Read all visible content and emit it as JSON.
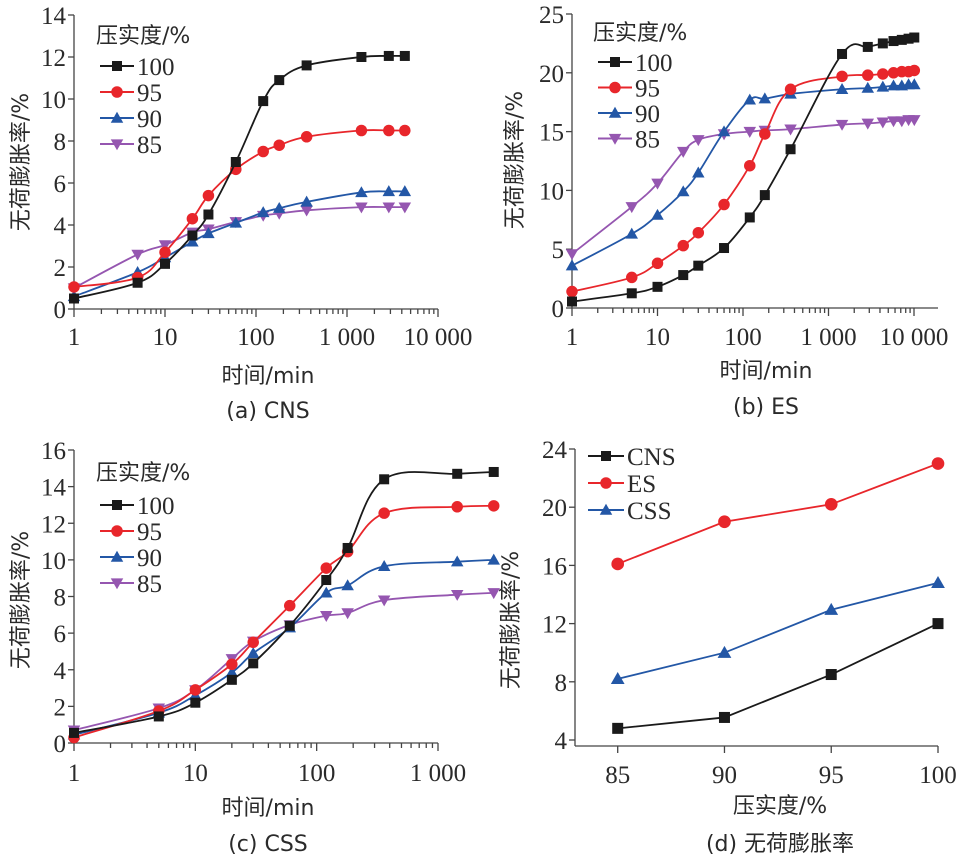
{
  "chart_data": [
    {
      "id": "a",
      "type": "line",
      "caption": "(a) CNS",
      "xlabel": "时间/min",
      "ylabel": "无荷膨胀率/%",
      "xscale": "log",
      "xlim": [
        1,
        10000
      ],
      "ylim": [
        0,
        14
      ],
      "xticks": [
        1,
        10,
        100,
        1000,
        10000
      ],
      "xtick_labels": [
        "1",
        "10",
        "100",
        "1 000",
        "10 000"
      ],
      "yticks": [
        0,
        2,
        4,
        6,
        8,
        10,
        12,
        14
      ],
      "ytick_labels": [
        "0",
        "2",
        "4",
        "6",
        "8",
        "10",
        "12",
        "14"
      ],
      "legend_title": "压实度/%",
      "legend_position": "top-left",
      "x": [
        1,
        5,
        10,
        20,
        30,
        60,
        120,
        180,
        360,
        1440,
        2880,
        4320
      ],
      "series": [
        {
          "name": "100",
          "marker": "square",
          "color": "#1a1a1a",
          "values": [
            0.5,
            1.25,
            2.15,
            3.5,
            4.5,
            7.0,
            9.9,
            10.9,
            11.6,
            12.0,
            12.05,
            12.05
          ]
        },
        {
          "name": "95",
          "marker": "circle",
          "color": "#e8262b",
          "values": [
            1.05,
            1.5,
            2.7,
            4.3,
            5.4,
            6.65,
            7.5,
            7.8,
            8.2,
            8.5,
            8.5,
            8.5
          ]
        },
        {
          "name": "90",
          "marker": "triangle-up",
          "color": "#2357a6",
          "values": [
            0.6,
            1.75,
            2.45,
            3.2,
            3.6,
            4.1,
            4.6,
            4.8,
            5.1,
            5.55,
            5.6,
            5.6
          ]
        },
        {
          "name": "85",
          "marker": "triangle-down",
          "color": "#9556b0",
          "values": [
            1.0,
            2.6,
            3.05,
            3.65,
            3.8,
            4.15,
            4.45,
            4.55,
            4.7,
            4.85,
            4.85,
            4.85
          ]
        }
      ]
    },
    {
      "id": "b",
      "type": "line",
      "caption": "(b) ES",
      "xlabel": "时间/min",
      "ylabel": "无荷膨胀率/%",
      "xscale": "log",
      "xlim": [
        1,
        10000
      ],
      "ylim": [
        0,
        25
      ],
      "xticks": [
        1,
        10,
        100,
        1000,
        10000
      ],
      "xtick_labels": [
        "1",
        "10",
        "100",
        "1 000",
        "10 000"
      ],
      "yticks": [
        0,
        5,
        10,
        15,
        20,
        25
      ],
      "ytick_labels": [
        "0",
        "5",
        "10",
        "15",
        "20",
        "25"
      ],
      "legend_title": "压实度/%",
      "legend_position": "top-left",
      "x": [
        1,
        5,
        10,
        20,
        30,
        60,
        120,
        180,
        360,
        1440,
        2880,
        4320,
        5760,
        7200,
        8640,
        10080
      ],
      "series": [
        {
          "name": "100",
          "marker": "square",
          "color": "#1a1a1a",
          "values": [
            0.55,
            1.25,
            1.8,
            2.8,
            3.6,
            5.1,
            7.7,
            9.6,
            13.5,
            21.6,
            22.2,
            22.5,
            22.7,
            22.8,
            22.9,
            23.0
          ]
        },
        {
          "name": "95",
          "marker": "circle",
          "color": "#e8262b",
          "values": [
            1.4,
            2.6,
            3.8,
            5.3,
            6.4,
            8.8,
            12.1,
            14.8,
            18.6,
            19.7,
            19.8,
            19.9,
            20.0,
            20.1,
            20.1,
            20.2
          ]
        },
        {
          "name": "90",
          "marker": "triangle-up",
          "color": "#2357a6",
          "values": [
            3.6,
            6.3,
            7.9,
            9.9,
            11.5,
            15.0,
            17.7,
            17.8,
            18.2,
            18.6,
            18.7,
            18.8,
            18.9,
            18.9,
            19.0,
            19.0
          ]
        },
        {
          "name": "85",
          "marker": "triangle-down",
          "color": "#9556b0",
          "values": [
            4.6,
            8.6,
            10.6,
            13.3,
            14.3,
            14.8,
            15.0,
            15.1,
            15.2,
            15.6,
            15.7,
            15.8,
            15.9,
            15.9,
            16.0,
            16.0
          ]
        }
      ]
    },
    {
      "id": "c",
      "type": "line",
      "caption": "(c) CSS",
      "xlabel": "时间/min",
      "ylabel": "无荷膨胀率/%",
      "xscale": "log",
      "xlim": [
        1,
        5000
      ],
      "ylim": [
        0,
        16
      ],
      "xticks": [
        1,
        10,
        100,
        1000
      ],
      "xtick_labels": [
        "1",
        "10",
        "100",
        "1 000"
      ],
      "yticks": [
        0,
        2,
        4,
        6,
        8,
        10,
        12,
        14,
        16
      ],
      "ytick_labels": [
        "0",
        "2",
        "4",
        "6",
        "8",
        "10",
        "12",
        "14",
        "16"
      ],
      "legend_title": "压实度/%",
      "legend_position": "top-left",
      "x": [
        1,
        5,
        10,
        20,
        30,
        60,
        120,
        180,
        360,
        1440,
        2880
      ],
      "series": [
        {
          "name": "100",
          "marker": "square",
          "color": "#1a1a1a",
          "values": [
            0.55,
            1.45,
            2.2,
            3.45,
            4.35,
            6.4,
            8.9,
            10.65,
            14.4,
            14.7,
            14.8
          ]
        },
        {
          "name": "95",
          "marker": "circle",
          "color": "#e8262b",
          "values": [
            0.3,
            1.75,
            2.9,
            4.3,
            5.5,
            7.5,
            9.55,
            10.45,
            12.55,
            12.9,
            12.95
          ]
        },
        {
          "name": "90",
          "marker": "triangle-up",
          "color": "#2357a6",
          "values": [
            0.45,
            1.65,
            2.6,
            3.85,
            4.9,
            6.3,
            8.2,
            8.6,
            9.65,
            9.9,
            10.0
          ]
        },
        {
          "name": "85",
          "marker": "triangle-down",
          "color": "#9556b0",
          "values": [
            0.7,
            1.9,
            2.9,
            4.6,
            5.55,
            6.45,
            6.95,
            7.1,
            7.8,
            8.1,
            8.2
          ]
        }
      ]
    },
    {
      "id": "d",
      "type": "line",
      "caption": "(d) 无荷膨胀率",
      "xlabel": "压实度/%",
      "ylabel": "无荷膨胀率/%",
      "xscale": "linear",
      "xlim": [
        83,
        100
      ],
      "ylim": [
        3.5,
        24
      ],
      "xticks": [
        85,
        90,
        95,
        100
      ],
      "xtick_labels": [
        "85",
        "90",
        "95",
        "100"
      ],
      "yticks": [
        4,
        8,
        12,
        16,
        20,
        24
      ],
      "ytick_labels": [
        "4",
        "8",
        "12",
        "16",
        "20",
        "24"
      ],
      "legend_title": "",
      "legend_position": "top-left",
      "x": [
        85,
        90,
        95,
        100
      ],
      "series": [
        {
          "name": "CNS",
          "marker": "square",
          "color": "#1a1a1a",
          "values": [
            4.8,
            5.55,
            8.5,
            12.0
          ]
        },
        {
          "name": "ES",
          "marker": "circle",
          "color": "#e8262b",
          "values": [
            16.1,
            19.0,
            20.2,
            23.0
          ]
        },
        {
          "name": "CSS",
          "marker": "triangle-up",
          "color": "#2357a6",
          "values": [
            8.2,
            10.0,
            12.95,
            14.8
          ]
        }
      ]
    }
  ]
}
